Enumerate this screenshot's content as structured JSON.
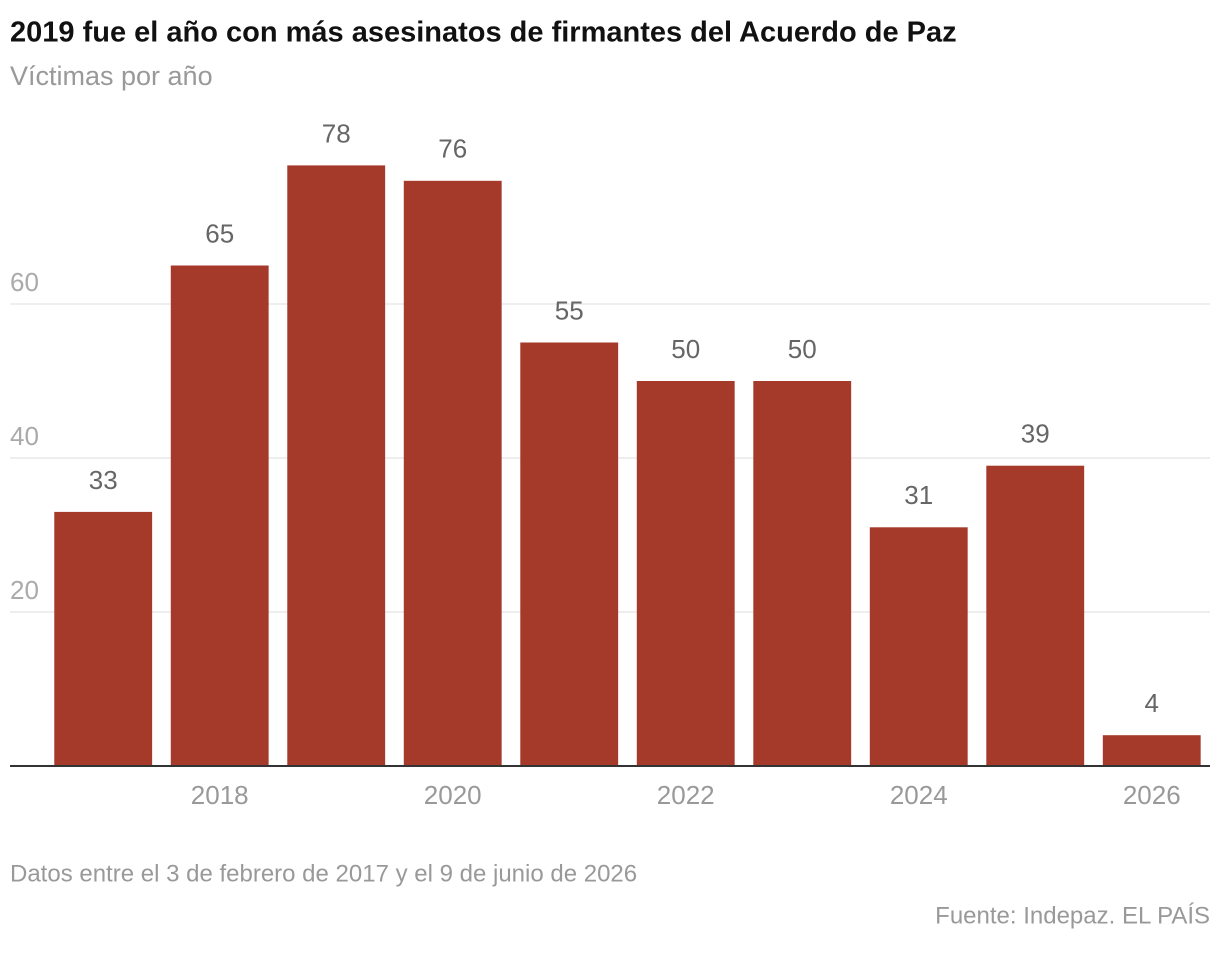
{
  "chart_data": {
    "type": "bar",
    "title": "2019 fue el año con más asesinatos de firmantes del Acuerdo de Paz",
    "subtitle": "Víctimas por año",
    "x": [
      2017,
      2018,
      2019,
      2020,
      2021,
      2022,
      2023,
      2024,
      2025,
      2026
    ],
    "values": [
      33,
      65,
      78,
      76,
      55,
      50,
      50,
      31,
      39,
      4
    ],
    "color": "#a53a2a",
    "xlim": [
      2016.2,
      2026.5
    ],
    "xticks": [
      2018,
      2020,
      2022,
      2024,
      2026
    ],
    "ylim": [
      0,
      80
    ],
    "yticks": [
      20,
      40,
      60
    ],
    "grid": true,
    "note": "Datos entre el 3 de febrero de 2017 y el 9 de junio de 2026",
    "source": "Fuente: Indepaz. EL PAÍS"
  }
}
